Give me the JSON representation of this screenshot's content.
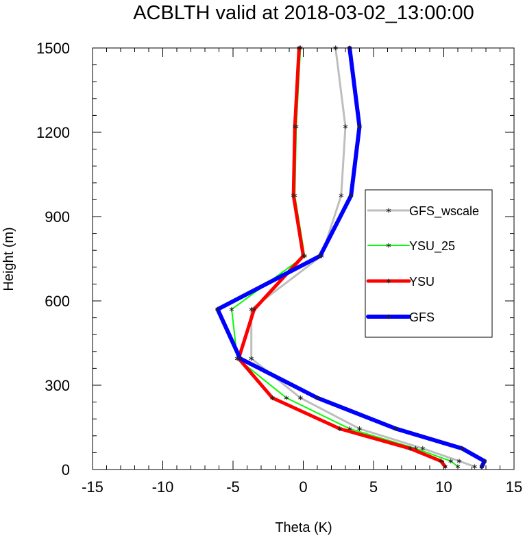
{
  "chart_data": {
    "type": "line",
    "title": "ACBLTH valid at 2018-03-02_13:00:00",
    "xlabel": "Theta (K)",
    "ylabel": "Height (m)",
    "xlim": [
      -15,
      15
    ],
    "ylim": [
      0,
      1500
    ],
    "xticks": [
      -15,
      -10,
      -5,
      0,
      5,
      10,
      15
    ],
    "yticks": [
      0,
      300,
      600,
      900,
      1200,
      1500
    ],
    "xtick_labels": [
      "-15",
      "-10",
      "-5",
      "0",
      "5",
      "10",
      "15"
    ],
    "ytick_labels": [
      "0",
      "300",
      "600",
      "900",
      "1200",
      "1500"
    ],
    "grid": false,
    "legend_position": "right",
    "marker": "asterisk",
    "series": [
      {
        "name": "GFS_wscale",
        "color": "#bebebe",
        "width": 3,
        "x": [
          12.2,
          11.1,
          8.5,
          4.0,
          -0.2,
          -3.7,
          -3.7,
          1.3,
          2.7,
          3.0,
          2.3
        ],
        "y": [
          10,
          30,
          75,
          145,
          255,
          395,
          570,
          760,
          975,
          1220,
          1500
        ]
      },
      {
        "name": "YSU_25",
        "color": "#00ff00",
        "width": 2,
        "x": [
          11.0,
          10.5,
          8.0,
          3.3,
          -1.2,
          -4.7,
          -5.1,
          0.1,
          -0.6,
          -0.5,
          -0.2
        ],
        "y": [
          10,
          30,
          75,
          145,
          255,
          395,
          570,
          760,
          975,
          1220,
          1500
        ]
      },
      {
        "name": "YSU",
        "color": "#ff0000",
        "width": 5,
        "x": [
          10.1,
          9.8,
          7.6,
          2.6,
          -2.2,
          -4.6,
          -3.5,
          0.0,
          -0.7,
          -0.6,
          -0.3
        ],
        "y": [
          10,
          30,
          75,
          145,
          255,
          395,
          570,
          760,
          975,
          1220,
          1500
        ]
      },
      {
        "name": "GFS",
        "color": "#0000ff",
        "width": 6,
        "x": [
          12.7,
          12.9,
          11.3,
          6.6,
          1.0,
          -4.5,
          -6.1,
          1.2,
          3.4,
          4.0,
          3.3
        ],
        "y": [
          10,
          30,
          75,
          145,
          255,
          395,
          570,
          760,
          975,
          1220,
          1500
        ]
      }
    ]
  }
}
